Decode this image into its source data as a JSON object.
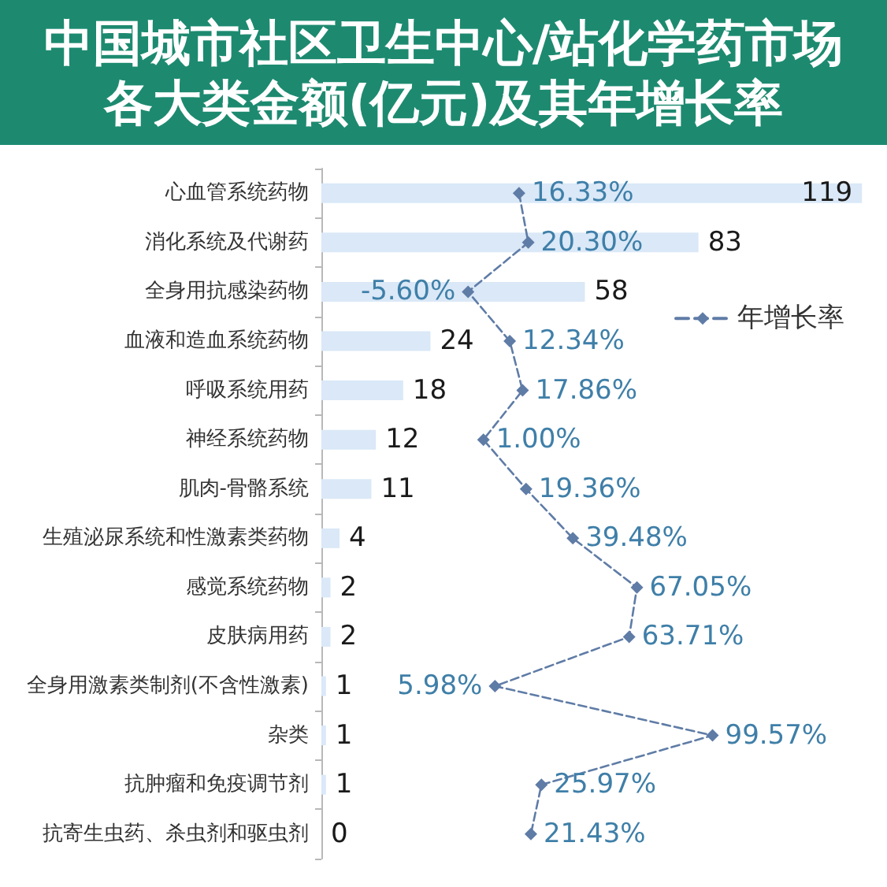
{
  "chart_data": [
    {
      "type": "bar",
      "orientation": "horizontal",
      "title": "中国城市社区卫生中心/站化学药市场各大类金额(亿元)及其年增长率",
      "categories": [
        "心血管系统药物",
        "消化系统及代谢药",
        "全身用抗感染药物",
        "血液和造血系统药物",
        "呼吸系统用药",
        "神经系统药物",
        "肌肉-骨骼系统",
        "生殖泌尿系统和性激素类药物",
        "感觉系统药物",
        "皮肤病用药",
        "全身用激素类制剂(不含性激素)",
        "杂类",
        "抗肿瘤和免疫调节剂",
        "抗寄生虫药、杀虫剂和驱虫剂"
      ],
      "series": [
        {
          "color": "#dae8f7",
          "values": [
            119,
            83,
            58,
            24,
            18,
            12,
            11,
            4,
            2,
            2,
            1,
            1,
            1,
            0
          ],
          "value_labels": [
            "119",
            "83",
            "58",
            "24",
            "18",
            "12",
            "11",
            "4",
            "2",
            "2",
            "1",
            "1",
            "1",
            "0"
          ]
        }
      ],
      "tick_labels": "y"
    },
    {
      "type": "line",
      "orientation": "horizontal",
      "categories": [
        null,
        null,
        null,
        null,
        null,
        null,
        null,
        null,
        null,
        null,
        null,
        null,
        null,
        null
      ],
      "series": [
        {
          "name": "年增长率",
          "color": "#5f7ca6",
          "values": [
            16.33,
            20.3,
            -5.6,
            12.34,
            17.86,
            1.0,
            19.36,
            39.48,
            67.05,
            63.71,
            5.98,
            99.57,
            25.97,
            21.43
          ],
          "value_labels": [
            "16.33%",
            "20.30%",
            "-5.60%",
            "12.34%",
            "17.86%",
            "1.00%",
            "19.36%",
            "39.48%",
            "67.05%",
            "63.71%",
            "5.98%",
            "99.57%",
            "25.97%",
            "21.43%"
          ]
        }
      ],
      "legend": "right",
      "marker": "diamond",
      "line_style": "dashed",
      "tick_labels": false
    }
  ]
}
